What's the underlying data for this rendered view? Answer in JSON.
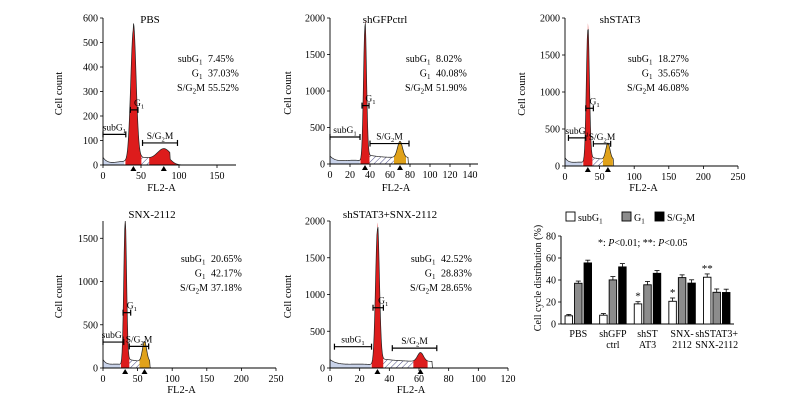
{
  "chart_data": [
    {
      "type": "histogram",
      "panel": "PBS",
      "title": "PBS",
      "xlabel": "FL2-A",
      "ylabel": "Cell count",
      "xlim": [
        0,
        175
      ],
      "ylim": [
        0,
        600
      ],
      "xticks": [
        "0",
        "50",
        "100",
        "150"
      ],
      "yticks": [
        "0",
        "100",
        "200",
        "300",
        "400",
        "500",
        "600"
      ],
      "xtick_values": [
        0,
        50,
        100,
        150
      ],
      "ytick_values": [
        0,
        100,
        200,
        300,
        400,
        500,
        600
      ],
      "peaks": [
        {
          "x": 40,
          "height": 540,
          "width": 3.5,
          "fill": "red"
        },
        {
          "x": 80,
          "height": 40,
          "width": 8,
          "fill": "red"
        }
      ],
      "gates": [
        {
          "label": "subG1",
          "from": 0,
          "to": 30,
          "level": 125
        },
        {
          "label": "G1",
          "from": 36,
          "to": 46,
          "level": 225
        },
        {
          "label": "S/G2M",
          "from": 52,
          "to": 98,
          "level": 90
        }
      ],
      "stats": [
        {
          "label": "subG1",
          "value": "7.45%"
        },
        {
          "label": "G1",
          "value": "37.03%"
        },
        {
          "label": "S/G2M",
          "value": "55.52%"
        }
      ]
    },
    {
      "type": "histogram",
      "panel": "shGFPctrl",
      "title": "shGFPctrl",
      "xlabel": "FL2-A",
      "ylabel": "Cell count",
      "xlim": [
        0,
        148
      ],
      "ylim": [
        0,
        2000
      ],
      "xticks": [
        "0",
        "20",
        "40",
        "60",
        "80",
        "100",
        "120",
        "140"
      ],
      "yticks": [
        "0",
        "500",
        "1000",
        "1500",
        "2000"
      ],
      "xtick_values": [
        0,
        20,
        40,
        60,
        80,
        100,
        120,
        140
      ],
      "ytick_values": [
        0,
        500,
        1000,
        1500,
        2000
      ],
      "peaks": [
        {
          "x": 35,
          "height": 1850,
          "width": 1.5,
          "fill": "red"
        },
        {
          "x": 70,
          "height": 220,
          "width": 2.5,
          "fill": "goldenrod"
        }
      ],
      "gates": [
        {
          "label": "subG1",
          "from": 0,
          "to": 30,
          "level": 370
        },
        {
          "label": "G1",
          "from": 32,
          "to": 39,
          "level": 800
        },
        {
          "label": "S/G2M",
          "from": 40,
          "to": 79,
          "level": 280
        }
      ],
      "stats": [
        {
          "label": "subG1",
          "value": "8.02%"
        },
        {
          "label": "G1",
          "value": "40.08%"
        },
        {
          "label": "S/G2M",
          "value": "51.90%"
        }
      ]
    },
    {
      "type": "histogram",
      "panel": "shSTAT3",
      "title": "shSTAT3",
      "xlabel": "FL2-A",
      "ylabel": "Cell count",
      "xlim": [
        0,
        250
      ],
      "ylim": [
        0,
        2000
      ],
      "xticks": [
        "0",
        "50",
        "100",
        "150",
        "200",
        "250"
      ],
      "yticks": [
        "0",
        "500",
        "1000",
        "1500",
        "2000"
      ],
      "xtick_values": [
        0,
        50,
        100,
        150,
        200,
        250
      ],
      "ytick_values": [
        0,
        500,
        1000,
        1500,
        2000
      ],
      "peaks": [
        {
          "x": 33,
          "height": 1800,
          "width": 2.2,
          "fill": "red"
        },
        {
          "x": 62,
          "height": 220,
          "width": 3,
          "fill": "goldenrod"
        }
      ],
      "gates": [
        {
          "label": "subG1",
          "from": 5,
          "to": 30,
          "level": 380
        },
        {
          "label": "G1",
          "from": 30,
          "to": 41,
          "level": 780
        },
        {
          "label": "S/G2M",
          "from": 41,
          "to": 66,
          "level": 300
        }
      ],
      "stats": [
        {
          "label": "subG1",
          "value": "18.27%"
        },
        {
          "label": "G1",
          "value": "35.65%"
        },
        {
          "label": "S/G2M",
          "value": "46.08%"
        }
      ]
    },
    {
      "type": "histogram",
      "panel": "SNX-2112",
      "title": "SNX-2112",
      "xlabel": "FL2-A",
      "ylabel": "Cell count",
      "xlim": [
        0,
        250
      ],
      "ylim": [
        0,
        1700
      ],
      "xticks": [
        "0",
        "50",
        "100",
        "150",
        "200",
        "250"
      ],
      "yticks": [
        "0",
        "500",
        "1000",
        "1500"
      ],
      "xtick_values": [
        0,
        50,
        100,
        150,
        200,
        250
      ],
      "ytick_values": [
        0,
        500,
        1000,
        1500
      ],
      "peaks": [
        {
          "x": 32,
          "height": 1650,
          "width": 2,
          "fill": "red"
        },
        {
          "x": 60,
          "height": 230,
          "width": 3,
          "fill": "goldenrod"
        }
      ],
      "gates": [
        {
          "label": "subG1",
          "from": 0,
          "to": 30,
          "level": 300
        },
        {
          "label": "G1",
          "from": 29,
          "to": 40,
          "level": 640
        },
        {
          "label": "S/G2M",
          "from": 38,
          "to": 66,
          "level": 250
        }
      ],
      "stats": [
        {
          "label": "subG1",
          "value": "20.65%"
        },
        {
          "label": "G1",
          "value": "42.17%"
        },
        {
          "label": "S/G2M",
          "value": "37.18%"
        }
      ]
    },
    {
      "type": "histogram",
      "panel": "shSTAT3+SNX-2112",
      "title": "shSTAT3+SNX-2112",
      "xlabel": "FL2-A",
      "ylabel": "Cell count",
      "xlim": [
        0,
        120
      ],
      "ylim": [
        0,
        2000
      ],
      "xticks": [
        "0",
        "20",
        "40",
        "60",
        "80",
        "100",
        "120"
      ],
      "yticks": [
        "0",
        "500",
        "1000",
        "1500",
        "2000"
      ],
      "xtick_values": [
        0,
        20,
        40,
        60,
        80,
        100,
        120
      ],
      "ytick_values": [
        0,
        500,
        1000,
        1500,
        2000
      ],
      "peaks": [
        {
          "x": 32,
          "height": 1850,
          "width": 1.3,
          "fill": "red"
        },
        {
          "x": 61,
          "height": 120,
          "width": 2,
          "fill": "red"
        }
      ],
      "gates": [
        {
          "label": "subG1",
          "from": 3,
          "to": 28,
          "level": 290
        },
        {
          "label": "G1",
          "from": 29,
          "to": 36,
          "level": 820
        },
        {
          "label": "S/G2M",
          "from": 42,
          "to": 72,
          "level": 270
        }
      ],
      "stats": [
        {
          "label": "subG1",
          "value": "42.52%"
        },
        {
          "label": "G1",
          "value": "28.83%"
        },
        {
          "label": "S/G2M",
          "value": "28.65%"
        }
      ]
    },
    {
      "type": "bar",
      "panel": "summary",
      "ylabel": "Cell cycle distribution (%)",
      "ylim": [
        0,
        80
      ],
      "yticks": [
        "0",
        "20",
        "40",
        "60",
        "80"
      ],
      "ytick_values": [
        0,
        20,
        40,
        60,
        80
      ],
      "categories": [
        [
          "PBS"
        ],
        [
          "shGFP",
          "ctrl"
        ],
        [
          "shST",
          "AT3"
        ],
        [
          "SNX-",
          "2112"
        ],
        [
          "shSTAT3+",
          "SNX-2112"
        ]
      ],
      "series": [
        {
          "name": "subG1",
          "color": "#ffffff",
          "values": [
            7.45,
            8.02,
            18.27,
            20.65,
            42.52
          ],
          "errors": [
            1.2,
            1.5,
            2.0,
            3.0,
            3.0
          ]
        },
        {
          "name": "G1",
          "color": "#8c8c8c",
          "values": [
            37.03,
            40.08,
            35.65,
            42.17,
            28.83
          ],
          "errors": [
            2.0,
            3.0,
            3.0,
            2.5,
            3.0
          ]
        },
        {
          "name": "S/G2M",
          "color": "#000000",
          "values": [
            55.52,
            51.9,
            46.08,
            37.18,
            28.65
          ],
          "errors": [
            2.5,
            3.0,
            2.5,
            3.0,
            3.0
          ]
        }
      ],
      "significance": [
        {
          "category": 2,
          "series": 0,
          "mark": "*"
        },
        {
          "category": 3,
          "series": 0,
          "mark": "*"
        },
        {
          "category": 4,
          "series": 0,
          "mark": "**"
        }
      ],
      "note": "*: P<0.01; **: P<0.05"
    }
  ]
}
